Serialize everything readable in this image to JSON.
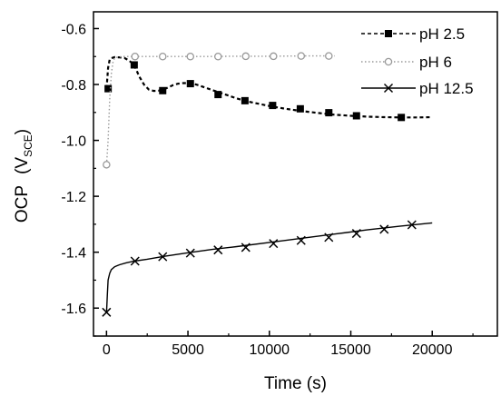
{
  "chart_data": {
    "type": "line",
    "xlabel": "Time (s)",
    "ylabel": "OCP",
    "ylabel_unit": "(V",
    "ylabel_unit_sub": "SCE",
    "ylabel_unit_close": ")",
    "xlim": [
      -800,
      24000
    ],
    "ylim": [
      -1.7,
      -0.54
    ],
    "x_ticks": [
      0,
      5000,
      10000,
      15000,
      20000
    ],
    "x_tick_labels": [
      "0",
      "5000",
      "10000",
      "15000",
      "20000"
    ],
    "y_ticks": [
      -0.6,
      -0.8,
      -1.0,
      -1.2,
      -1.4,
      -1.6
    ],
    "y_tick_labels": [
      "-0.6",
      "-0.8",
      "-1.0",
      "-1.2",
      "-1.4",
      "-1.6"
    ],
    "grid": false,
    "legend_position": "top-right",
    "series": [
      {
        "name": "pH 2.5",
        "line_style": "dashed",
        "marker": "filled-square",
        "color": "#000000",
        "x": [
          0,
          100,
          200,
          350,
          500,
          800,
          1100,
          1400,
          1700,
          2000,
          2300,
          2600,
          2900,
          3200,
          3500,
          3800,
          4100,
          4400,
          4700,
          5000,
          5300,
          5600,
          6000,
          6500,
          7000,
          7500,
          8000,
          8500,
          9000,
          10000,
          11000,
          12000,
          13000,
          14000,
          15000,
          16000,
          17000,
          18000,
          19000,
          20000
        ],
        "y": [
          -0.815,
          -0.74,
          -0.71,
          -0.705,
          -0.702,
          -0.703,
          -0.705,
          -0.715,
          -0.73,
          -0.77,
          -0.8,
          -0.818,
          -0.823,
          -0.822,
          -0.818,
          -0.81,
          -0.802,
          -0.797,
          -0.795,
          -0.795,
          -0.797,
          -0.802,
          -0.81,
          -0.82,
          -0.83,
          -0.84,
          -0.85,
          -0.858,
          -0.865,
          -0.877,
          -0.887,
          -0.895,
          -0.902,
          -0.908,
          -0.912,
          -0.915,
          -0.917,
          -0.918,
          -0.918,
          -0.917
        ],
        "marker_x": [
          100,
          1700,
          3450,
          5150,
          6850,
          8500,
          10200,
          11900,
          13650,
          15350,
          18100
        ],
        "marker_y": [
          -0.815,
          -0.73,
          -0.822,
          -0.797,
          -0.836,
          -0.858,
          -0.875,
          -0.887,
          -0.901,
          -0.912,
          -0.918
        ]
      },
      {
        "name": "pH 6",
        "line_style": "dotted",
        "marker": "open-circle",
        "color": "#999999",
        "x": [
          0,
          100,
          200,
          300,
          400,
          500,
          700,
          1000,
          2000,
          4000,
          6000,
          8000,
          10000,
          12000,
          14000
        ],
        "y": [
          -1.087,
          -1.0,
          -0.85,
          -0.76,
          -0.72,
          -0.705,
          -0.702,
          -0.7,
          -0.7,
          -0.7,
          -0.7,
          -0.699,
          -0.699,
          -0.698,
          -0.698
        ],
        "marker_x": [
          0,
          1750,
          3450,
          5150,
          6850,
          8550,
          10250,
          11950,
          13650
        ],
        "marker_y": [
          -1.087,
          -0.7,
          -0.7,
          -0.7,
          -0.7,
          -0.699,
          -0.699,
          -0.698,
          -0.698
        ]
      },
      {
        "name": "pH 12.5",
        "line_style": "solid",
        "marker": "x",
        "color": "#000000",
        "x": [
          0,
          50,
          100,
          200,
          300,
          500,
          800,
          1200,
          1700,
          2500,
          3500,
          5000,
          6500,
          8000,
          10000,
          12000,
          14000,
          16000,
          18000,
          20000
        ],
        "y": [
          -1.615,
          -1.55,
          -1.5,
          -1.475,
          -1.462,
          -1.452,
          -1.445,
          -1.438,
          -1.432,
          -1.425,
          -1.415,
          -1.402,
          -1.39,
          -1.38,
          -1.365,
          -1.35,
          -1.335,
          -1.32,
          -1.307,
          -1.295
        ],
        "marker_x": [
          0,
          1750,
          3450,
          5150,
          6850,
          8550,
          10250,
          11950,
          13650,
          15350,
          17050,
          18750
        ],
        "marker_y": [
          -1.615,
          -1.432,
          -1.416,
          -1.403,
          -1.392,
          -1.383,
          -1.369,
          -1.358,
          -1.347,
          -1.333,
          -1.318,
          -1.302
        ]
      }
    ]
  }
}
